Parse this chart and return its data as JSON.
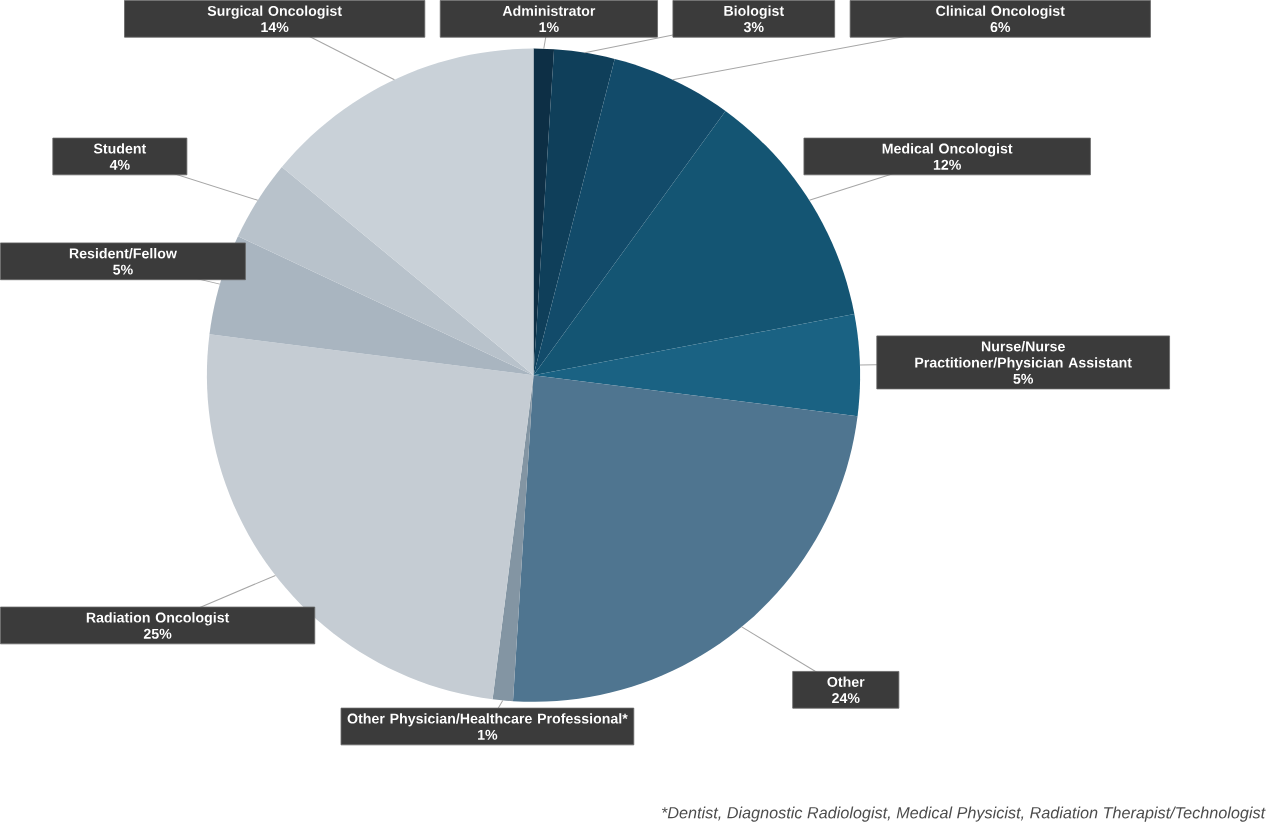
{
  "chart_data": {
    "type": "pie",
    "categories": [
      "Administrator",
      "Biologist",
      "Clinical Oncologist",
      "Medical Oncologist",
      "Nurse/Nurse Practitioner/Physician Assistant",
      "Other",
      "Other Physician/Healthcare Professional*",
      "Radiation Oncologist",
      "Resident/Fellow",
      "Student",
      "Surgical Oncologist"
    ],
    "values": [
      1,
      3,
      6,
      12,
      5,
      24,
      1,
      25,
      5,
      4,
      14
    ],
    "value_labels": [
      "1%",
      "3%",
      "6%",
      "12%",
      "5%",
      "24%",
      "1%",
      "25%",
      "5%",
      "4%",
      "14%"
    ],
    "colors": [
      "#0d2f45",
      "#0f3f5a",
      "#124b6a",
      "#145573",
      "#1a6283",
      "#4f7590",
      "#8395a3",
      "#c5ccd3",
      "#a9b5c0",
      "#b8c2cb",
      "#c9d1d8"
    ],
    "annotations": [
      "*Dentist, Diagnostic Radiologist, Medical Physicist, Radiation Therapist/Technologist"
    ]
  }
}
